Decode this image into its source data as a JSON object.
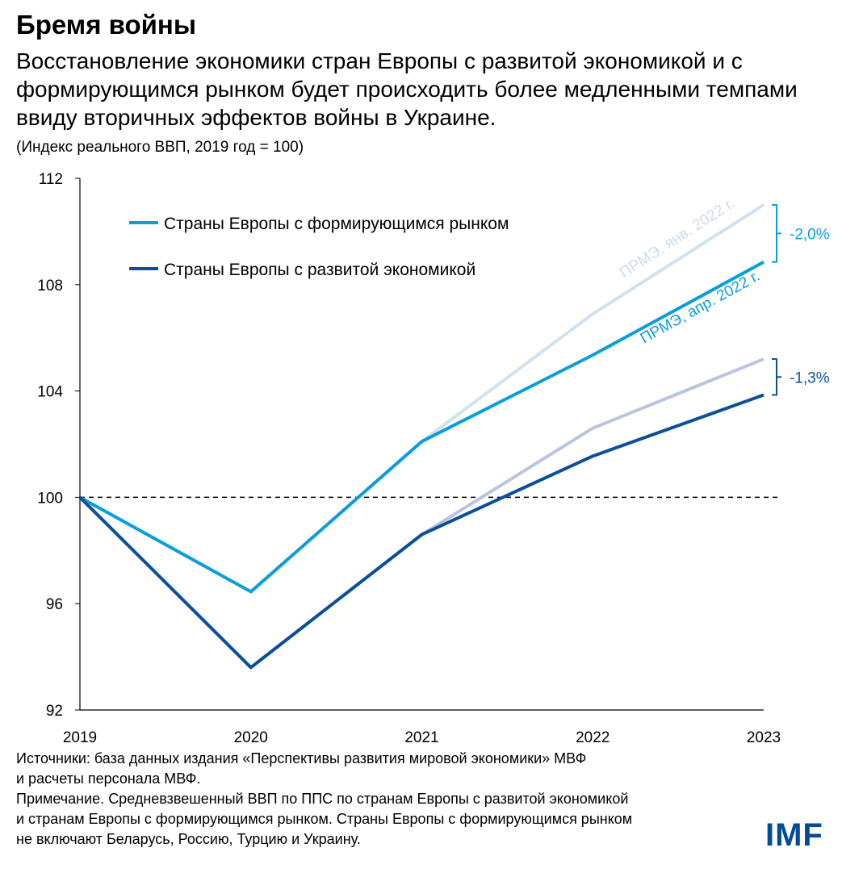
{
  "title": "Бремя войны",
  "subtitle": "Восстановление экономики стран Европы с развитой экономикой и с формирующимся рынком будет происходить более медленными темпами ввиду вторичных эффектов войны в Украине.",
  "chart_data": {
    "type": "line",
    "ylabel": "(Индекс реального ВВП, 2019 год = 100)",
    "x": [
      "2019",
      "2020",
      "2021",
      "2022",
      "2023"
    ],
    "ylim": [
      92,
      112
    ],
    "yticks": [
      "92",
      "96",
      "100",
      "104",
      "108",
      "112"
    ],
    "reference_line": 100,
    "legend": {
      "placement": "top-left",
      "entries": [
        "Страны Европы с формирующимся рынком",
        "Страны Европы с развитой экономикой"
      ]
    },
    "series": [
      {
        "name": "Страны Европы с формирующимся рынком",
        "label": "ПРМЭ, янв. 2022 г.",
        "color": "#cfe2ef",
        "values": [
          100,
          96.45,
          102.1,
          106.9,
          111.0
        ]
      },
      {
        "name": "Страны Европы с формирующимся рынком",
        "label": "ПРМЭ, апр. 2022 г.",
        "color": "#0a9ddd",
        "values": [
          100,
          96.45,
          102.1,
          105.35,
          108.85
        ]
      },
      {
        "name": "Страны Европы с развитой экономикой",
        "label": "ПРМЭ, янв. 2022 г.",
        "color": "#b9c5dc",
        "values": [
          100,
          93.6,
          98.6,
          102.6,
          105.2
        ]
      },
      {
        "name": "Страны Европы с развитой экономикой",
        "label": "ПРМЭ, апр. 2022 г.",
        "color": "#0b4e99",
        "values": [
          100,
          93.6,
          98.6,
          101.55,
          103.85
        ]
      }
    ],
    "annotations": [
      {
        "text": "-2,0%",
        "color": "#0a9ddd",
        "from": 111.0,
        "to": 108.85
      },
      {
        "text": "-1,3%",
        "color": "#0b4e99",
        "from": 105.2,
        "to": 103.85
      }
    ]
  },
  "notes": [
    "Источники: база данных издания «Перспективы развития мировой экономики» МВФ",
    "и расчеты персонала МВФ.",
    "Примечание. Средневзвешенный ВВП по ППС по странам Европы с развитой экономикой",
    "и странам Европы с формирующимся рынком. Страны Европы с формирующимся рынком",
    "не включают Беларусь, Россию, Турцию и Украину."
  ],
  "logo": "IMF"
}
